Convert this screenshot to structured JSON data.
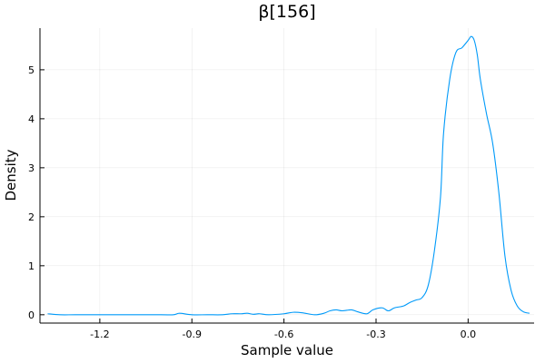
{
  "chart_data": {
    "type": "line",
    "title": "β[156]",
    "xlabel": "Sample value",
    "ylabel": "Density",
    "xlim": [
      -1.395,
      0.215
    ],
    "ylim": [
      -0.17,
      5.85
    ],
    "grid": true,
    "legend": "none",
    "line_color": "#009af9",
    "x_ticks": [
      {
        "value": -1.2,
        "label": "-1.2"
      },
      {
        "value": -0.9,
        "label": "-0.9"
      },
      {
        "value": -0.6,
        "label": "-0.6"
      },
      {
        "value": -0.3,
        "label": "-0.3"
      },
      {
        "value": 0.0,
        "label": "0.0"
      }
    ],
    "y_ticks": [
      {
        "value": 0,
        "label": "0"
      },
      {
        "value": 1,
        "label": "1"
      },
      {
        "value": 2,
        "label": "2"
      },
      {
        "value": 3,
        "label": "3"
      },
      {
        "value": 4,
        "label": "4"
      },
      {
        "value": 5,
        "label": "5"
      }
    ],
    "series": [
      {
        "x": [
          -1.37,
          -1.33,
          -1.28,
          -1.2,
          -1.1,
          -1.0,
          -0.96,
          -0.94,
          -0.9,
          -0.85,
          -0.8,
          -0.77,
          -0.74,
          -0.72,
          -0.7,
          -0.68,
          -0.65,
          -0.6,
          -0.57,
          -0.54,
          -0.5,
          -0.47,
          -0.45,
          -0.43,
          -0.41,
          -0.38,
          -0.36,
          -0.33,
          -0.31,
          -0.28,
          -0.26,
          -0.24,
          -0.21,
          -0.19,
          -0.17,
          -0.15,
          -0.13,
          -0.11,
          -0.09,
          -0.08,
          -0.06,
          -0.04,
          -0.02,
          0.0,
          0.01,
          0.02,
          0.03,
          0.04,
          0.06,
          0.08,
          0.1,
          0.12,
          0.14,
          0.16,
          0.18,
          0.2
        ],
        "y": [
          0.02,
          0.0,
          0.0,
          0.0,
          0.0,
          0.0,
          0.0,
          0.03,
          0.0,
          0.0,
          0.0,
          0.02,
          0.02,
          0.03,
          0.01,
          0.02,
          0.0,
          0.02,
          0.05,
          0.04,
          0.0,
          0.03,
          0.08,
          0.1,
          0.08,
          0.1,
          0.06,
          0.02,
          0.1,
          0.14,
          0.08,
          0.14,
          0.18,
          0.25,
          0.3,
          0.35,
          0.6,
          1.3,
          2.4,
          3.7,
          4.8,
          5.35,
          5.45,
          5.6,
          5.68,
          5.6,
          5.3,
          4.8,
          4.1,
          3.5,
          2.5,
          1.2,
          0.5,
          0.18,
          0.06,
          0.03
        ]
      }
    ]
  }
}
